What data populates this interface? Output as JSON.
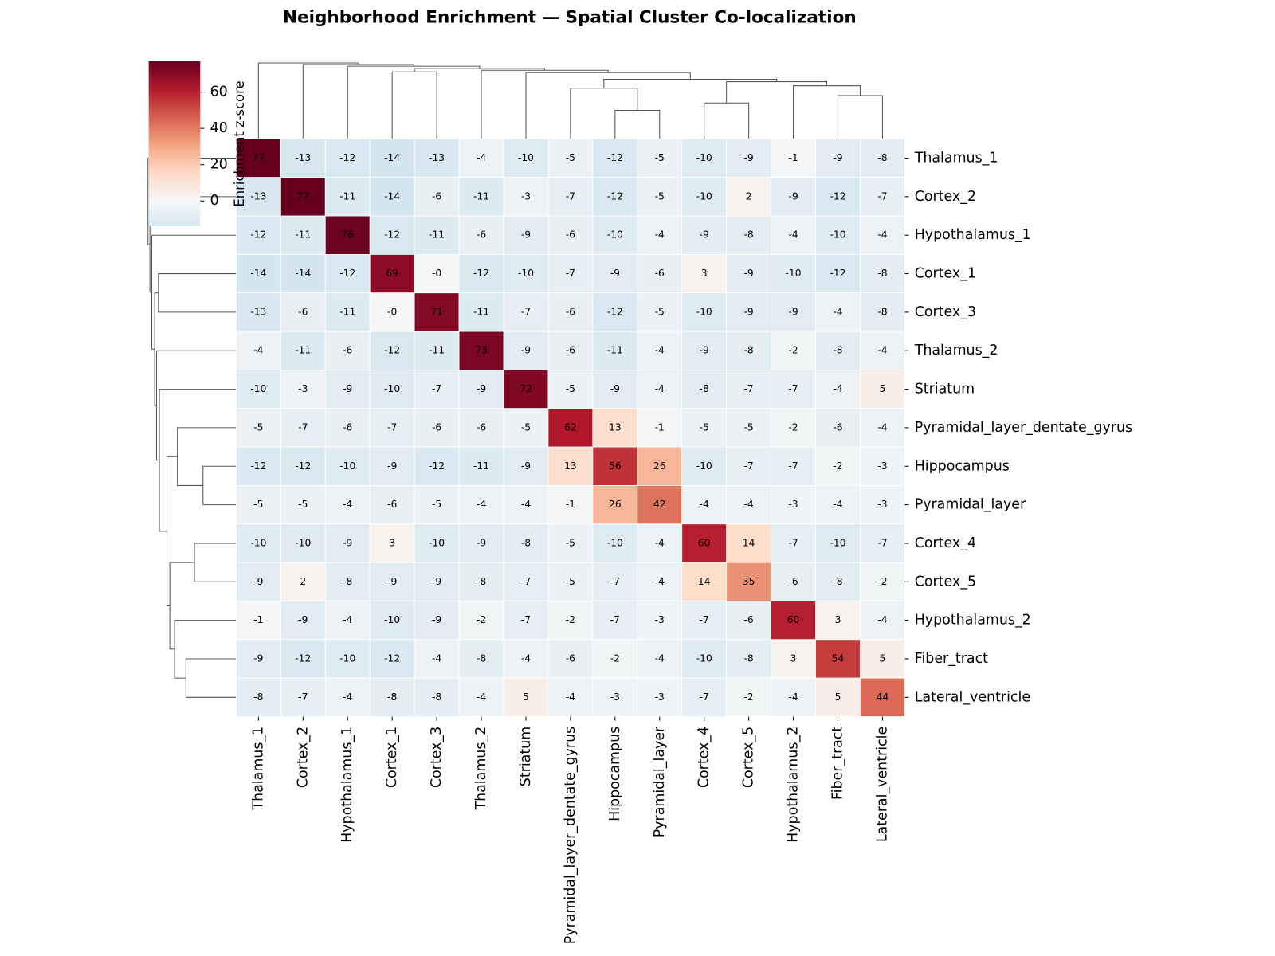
{
  "chart_data": {
    "type": "heatmap",
    "title": "Neighborhood Enrichment — Spatial Cluster Co-localization",
    "colorbar_label": "Enrichment z-score",
    "colormap": "RdBu_r",
    "center": 0,
    "clim": [
      -14,
      77
    ],
    "cticks": [
      0,
      20,
      40,
      60
    ],
    "labels": [
      "Thalamus_1",
      "Cortex_2",
      "Hypothalamus_1",
      "Cortex_1",
      "Cortex_3",
      "Thalamus_2",
      "Striatum",
      "Pyramidal_layer_dentate_gyrus",
      "Hippocampus",
      "Pyramidal_layer",
      "Cortex_4",
      "Cortex_5",
      "Hypothalamus_2",
      "Fiber_tract",
      "Lateral_ventricle"
    ],
    "values": [
      [
        77,
        -13,
        -12,
        -14,
        -13,
        -4,
        -10,
        -5,
        -12,
        -5,
        -10,
        -9,
        -1,
        -9,
        -8
      ],
      [
        -13,
        77,
        -11,
        -14,
        -6,
        -11,
        -3,
        -7,
        -12,
        -5,
        -10,
        2,
        -9,
        -12,
        -7
      ],
      [
        -12,
        -11,
        76,
        -12,
        -11,
        -6,
        -9,
        -6,
        -10,
        -4,
        -9,
        -8,
        -4,
        -10,
        -4
      ],
      [
        -14,
        -14,
        -12,
        69,
        -0.3,
        -12,
        -10,
        -7,
        -9,
        -6,
        3,
        -9,
        -10,
        -12,
        -8
      ],
      [
        -13,
        -6,
        -11,
        -0.3,
        71,
        -11,
        -7,
        -6,
        -12,
        -5,
        -10,
        -9,
        -9,
        -4,
        -8
      ],
      [
        -4,
        -11,
        -6,
        -12,
        -11,
        73,
        -9,
        -6,
        -11,
        -4,
        -9,
        -8,
        -2,
        -8,
        -4
      ],
      [
        -10,
        -3,
        -9,
        -10,
        -7,
        -9,
        72,
        -5,
        -9,
        -4,
        -8,
        -7,
        -7,
        -4,
        5
      ],
      [
        -5,
        -7,
        -6,
        -7,
        -6,
        -6,
        -5,
        62,
        13,
        -1,
        -5,
        -5,
        -2,
        -6,
        -4
      ],
      [
        -12,
        -12,
        -10,
        -9,
        -12,
        -11,
        -9,
        13,
        56,
        26,
        -10,
        -7,
        -7,
        -2,
        -3
      ],
      [
        -5,
        -5,
        -4,
        -6,
        -5,
        -4,
        -4,
        -1,
        26,
        42,
        -4,
        -4,
        -3,
        -4,
        -3
      ],
      [
        -10,
        -10,
        -9,
        3,
        -10,
        -9,
        -8,
        -5,
        -10,
        -4,
        60,
        14,
        -7,
        -10,
        -7
      ],
      [
        -9,
        2,
        -8,
        -9,
        -9,
        -8,
        -7,
        -5,
        -7,
        -4,
        14,
        35,
        -6,
        -8,
        -2
      ],
      [
        -1,
        -9,
        -4,
        -10,
        -9,
        -2,
        -7,
        -2,
        -7,
        -3,
        -7,
        -6,
        60,
        3,
        -4
      ],
      [
        -9,
        -12,
        -10,
        -12,
        -4,
        -8,
        -4,
        -6,
        -2,
        -4,
        -10,
        -8,
        3,
        54,
        5
      ],
      [
        -8,
        -7,
        -4,
        -8,
        -8,
        -4,
        5,
        -4,
        -3,
        -3,
        -7,
        -2,
        -4,
        5,
        44
      ]
    ],
    "value_labels": [
      [
        "77",
        "-13",
        "-12",
        "-14",
        "-13",
        "-4",
        "-10",
        "-5",
        "-12",
        "-5",
        "-10",
        "-9",
        "-1",
        "-9",
        "-8"
      ],
      [
        "-13",
        "77",
        "-11",
        "-14",
        "-6",
        "-11",
        "-3",
        "-7",
        "-12",
        "-5",
        "-10",
        "2",
        "-9",
        "-12",
        "-7"
      ],
      [
        "-12",
        "-11",
        "76",
        "-12",
        "-11",
        "-6",
        "-9",
        "-6",
        "-10",
        "-4",
        "-9",
        "-8",
        "-4",
        "-10",
        "-4"
      ],
      [
        "-14",
        "-14",
        "-12",
        "69",
        "-0",
        "-12",
        "-10",
        "-7",
        "-9",
        "-6",
        "3",
        "-9",
        "-10",
        "-12",
        "-8"
      ],
      [
        "-13",
        "-6",
        "-11",
        "-0",
        "71",
        "-11",
        "-7",
        "-6",
        "-12",
        "-5",
        "-10",
        "-9",
        "-9",
        "-4",
        "-8"
      ],
      [
        "-4",
        "-11",
        "-6",
        "-12",
        "-11",
        "73",
        "-9",
        "-6",
        "-11",
        "-4",
        "-9",
        "-8",
        "-2",
        "-8",
        "-4"
      ],
      [
        "-10",
        "-3",
        "-9",
        "-10",
        "-7",
        "-9",
        "72",
        "-5",
        "-9",
        "-4",
        "-8",
        "-7",
        "-7",
        "-4",
        "5"
      ],
      [
        "-5",
        "-7",
        "-6",
        "-7",
        "-6",
        "-6",
        "-5",
        "62",
        "13",
        "-1",
        "-5",
        "-5",
        "-2",
        "-6",
        "-4"
      ],
      [
        "-12",
        "-12",
        "-10",
        "-9",
        "-12",
        "-11",
        "-9",
        "13",
        "56",
        "26",
        "-10",
        "-7",
        "-7",
        "-2",
        "-3"
      ],
      [
        "-5",
        "-5",
        "-4",
        "-6",
        "-5",
        "-4",
        "-4",
        "-1",
        "26",
        "42",
        "-4",
        "-4",
        "-3",
        "-4",
        "-3"
      ],
      [
        "-10",
        "-10",
        "-9",
        "3",
        "-10",
        "-9",
        "-8",
        "-5",
        "-10",
        "-4",
        "60",
        "14",
        "-7",
        "-10",
        "-7"
      ],
      [
        "-9",
        "2",
        "-8",
        "-9",
        "-9",
        "-8",
        "-7",
        "-5",
        "-7",
        "-4",
        "14",
        "35",
        "-6",
        "-8",
        "-2"
      ],
      [
        "-1",
        "-9",
        "-4",
        "-10",
        "-9",
        "-2",
        "-7",
        "-2",
        "-7",
        "-3",
        "-7",
        "-6",
        "60",
        "3",
        "-4"
      ],
      [
        "-9",
        "-12",
        "-10",
        "-12",
        "-4",
        "-8",
        "-4",
        "-6",
        "-2",
        "-4",
        "-10",
        "-8",
        "3",
        "54",
        "5"
      ],
      [
        "-8",
        "-7",
        "-4",
        "-8",
        "-8",
        "-4",
        "5",
        "-4",
        "-3",
        "-3",
        "-7",
        "-2",
        "-4",
        "5",
        "44"
      ]
    ]
  }
}
